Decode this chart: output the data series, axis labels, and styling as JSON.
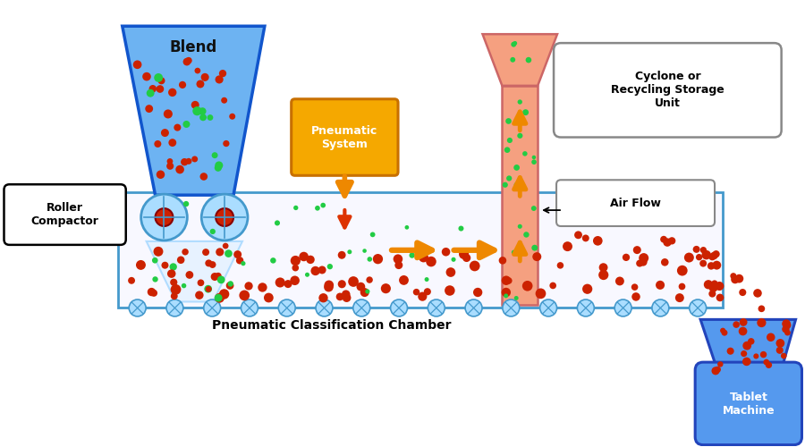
{
  "bg_color": "#ffffff",
  "roller_label": "Roller\nCompactor",
  "pneumatic_label": "Pneumatic\nSystem",
  "cyclone_label": "Cyclone or\nRecycling Storage\nUnit",
  "chamber_label": "Pneumatic Classification Chamber",
  "airflow_label": "Air Flow",
  "tablet_label": "Tablet\nMachine",
  "red_dot_color": "#cc2200",
  "green_dot_color": "#22cc44",
  "arrow_color": "#ee8800",
  "arrow_outline_color": "#dd3300",
  "conveyor_color": "#aaddff",
  "conveyor_edge": "#4499cc",
  "blend_color": "#6db3f2",
  "blend_edge": "#1155cc",
  "cyclone_color": "#f5a080",
  "cyclone_edge": "#cc6666",
  "tablet_color": "#5599ee",
  "tablet_edge": "#2244bb"
}
